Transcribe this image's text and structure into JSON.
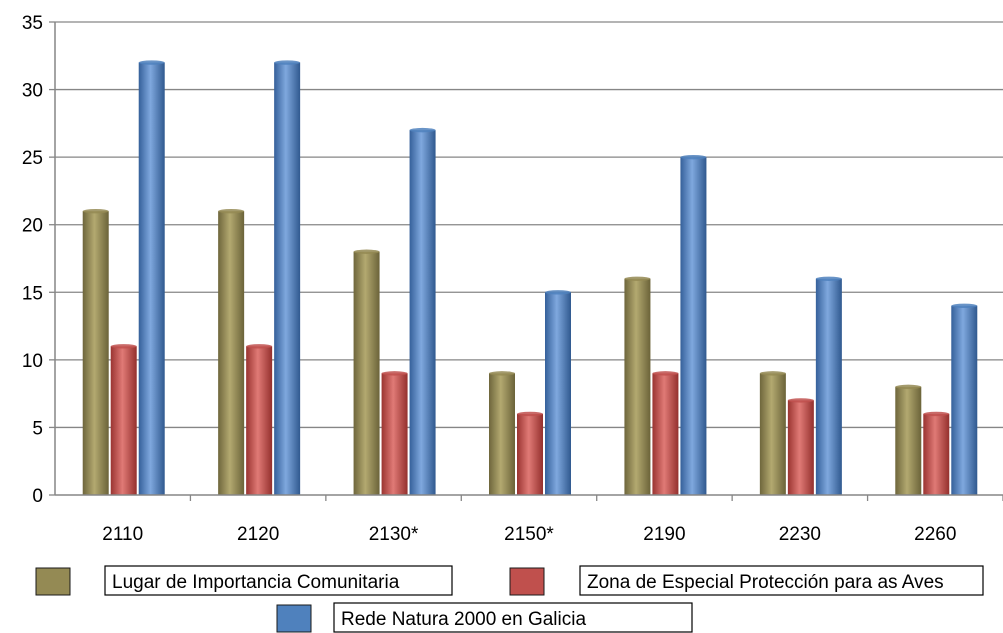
{
  "chart_data": {
    "type": "bar",
    "categories": [
      "2110",
      "2120",
      "2130*",
      "2150*",
      "2190",
      "2230",
      "2260"
    ],
    "series": [
      {
        "name": "Lugar de Importancia Comunitaria",
        "color": "#948a54",
        "values": [
          21,
          21,
          18,
          9,
          16,
          9,
          8
        ]
      },
      {
        "name": "Zona de Especial Protección para as Aves",
        "color": "#c0504d",
        "values": [
          11,
          11,
          9,
          6,
          9,
          7,
          6
        ]
      },
      {
        "name": "Rede Natura 2000 en Galicia",
        "color": "#4f81bd",
        "values": [
          32,
          32,
          27,
          15,
          25,
          16,
          14
        ]
      }
    ],
    "yticks": [
      0,
      5,
      10,
      15,
      20,
      25,
      30,
      35
    ],
    "ylim": [
      0,
      35
    ],
    "grid": true,
    "legend_position": "bottom",
    "title": "",
    "xlabel": "",
    "ylabel": ""
  }
}
